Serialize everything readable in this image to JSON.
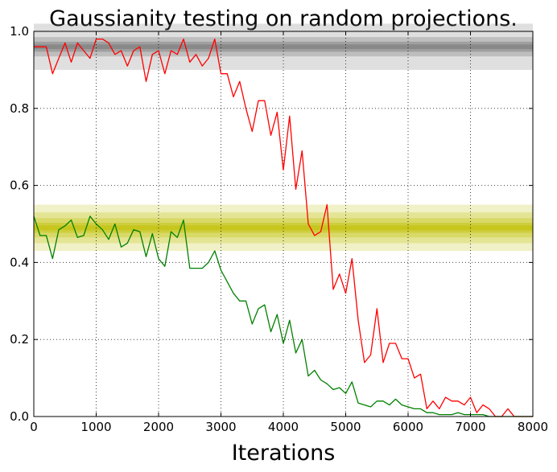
{
  "chart_data": {
    "type": "line",
    "title": "Gaussianity testing on random projections.",
    "xlabel": "Iterations",
    "ylabel": "",
    "xlim": [
      0,
      8000
    ],
    "ylim": [
      0,
      1.0
    ],
    "x_ticks": [
      "0",
      "1000",
      "2000",
      "3000",
      "4000",
      "5000",
      "6000",
      "7000",
      "8000"
    ],
    "y_ticks": [
      "0.0",
      "0.2",
      "0.4",
      "0.6",
      "0.8",
      "1.0"
    ],
    "grid": true,
    "bands": [
      {
        "center": 0.96,
        "half_widths": [
          0.06,
          0.025,
          0.013,
          0.006
        ],
        "color": "#808080",
        "alphas": [
          0.25,
          0.35,
          0.5,
          0.7
        ]
      },
      {
        "center": 0.49,
        "half_widths": [
          0.06,
          0.04,
          0.025,
          0.013,
          0.006
        ],
        "color": "#bfbf00",
        "alphas": [
          0.22,
          0.25,
          0.3,
          0.4,
          0.55
        ]
      }
    ],
    "series": [
      {
        "color": "#ff0000",
        "x": [
          0,
          100,
          200,
          300,
          400,
          500,
          600,
          700,
          800,
          900,
          1000,
          1100,
          1200,
          1300,
          1400,
          1500,
          1600,
          1700,
          1800,
          1900,
          2000,
          2100,
          2200,
          2300,
          2400,
          2500,
          2600,
          2700,
          2800,
          2900,
          3000,
          3100,
          3200,
          3300,
          3400,
          3500,
          3600,
          3700,
          3800,
          3900,
          4000,
          4100,
          4200,
          4300,
          4400,
          4500,
          4600,
          4700,
          4800,
          4900,
          5000,
          5100,
          5200,
          5300,
          5400,
          5500,
          5600,
          5700,
          5800,
          5900,
          6000,
          6100,
          6200,
          6300,
          6400,
          6500,
          6600,
          6700,
          6800,
          6900,
          7000,
          7100,
          7200,
          7300,
          7400,
          7500,
          7600,
          7700,
          7800,
          7900,
          8000
        ],
        "values": [
          0.96,
          0.96,
          0.96,
          0.89,
          0.93,
          0.97,
          0.92,
          0.97,
          0.95,
          0.93,
          0.98,
          0.98,
          0.97,
          0.94,
          0.95,
          0.91,
          0.95,
          0.96,
          0.87,
          0.94,
          0.95,
          0.89,
          0.95,
          0.94,
          0.98,
          0.92,
          0.94,
          0.91,
          0.93,
          0.98,
          0.89,
          0.89,
          0.83,
          0.87,
          0.8,
          0.74,
          0.82,
          0.82,
          0.73,
          0.79,
          0.64,
          0.78,
          0.59,
          0.69,
          0.5,
          0.47,
          0.48,
          0.55,
          0.33,
          0.37,
          0.32,
          0.41,
          0.25,
          0.14,
          0.16,
          0.28,
          0.14,
          0.19,
          0.19,
          0.15,
          0.15,
          0.1,
          0.11,
          0.02,
          0.04,
          0.02,
          0.05,
          0.04,
          0.04,
          0.03,
          0.05,
          0.01,
          0.03,
          0.02,
          0.0,
          0.0,
          0.02,
          0.0,
          0.0,
          0.0,
          0.0
        ]
      },
      {
        "color": "#008000",
        "x": [
          0,
          100,
          200,
          300,
          400,
          500,
          600,
          700,
          800,
          900,
          1000,
          1100,
          1200,
          1300,
          1400,
          1500,
          1600,
          1700,
          1800,
          1900,
          2000,
          2100,
          2200,
          2300,
          2400,
          2500,
          2600,
          2700,
          2800,
          2900,
          3000,
          3100,
          3200,
          3300,
          3400,
          3500,
          3600,
          3700,
          3800,
          3900,
          4000,
          4100,
          4200,
          4300,
          4400,
          4500,
          4600,
          4700,
          4800,
          4900,
          5000,
          5100,
          5200,
          5300,
          5400,
          5500,
          5600,
          5700,
          5800,
          5900,
          6000,
          6100,
          6200,
          6300,
          6400,
          6500,
          6600,
          6700,
          6800,
          6900,
          7000,
          7100,
          7200,
          7300,
          7400,
          7500,
          7600,
          7700,
          7800,
          7900,
          8000
        ],
        "values": [
          0.52,
          0.47,
          0.47,
          0.41,
          0.485,
          0.495,
          0.51,
          0.465,
          0.47,
          0.52,
          0.5,
          0.485,
          0.46,
          0.5,
          0.44,
          0.45,
          0.485,
          0.48,
          0.415,
          0.475,
          0.41,
          0.39,
          0.48,
          0.465,
          0.51,
          0.385,
          0.385,
          0.385,
          0.4,
          0.43,
          0.38,
          0.35,
          0.32,
          0.3,
          0.3,
          0.24,
          0.28,
          0.29,
          0.22,
          0.265,
          0.19,
          0.25,
          0.165,
          0.2,
          0.105,
          0.12,
          0.095,
          0.085,
          0.07,
          0.075,
          0.06,
          0.09,
          0.035,
          0.03,
          0.025,
          0.04,
          0.04,
          0.03,
          0.045,
          0.03,
          0.025,
          0.02,
          0.02,
          0.01,
          0.01,
          0.005,
          0.005,
          0.005,
          0.01,
          0.005,
          0.005,
          0.005,
          0.005,
          0.0,
          0.0,
          0.0,
          0.0,
          0.0,
          0.0,
          0.0,
          0.0
        ]
      }
    ]
  }
}
